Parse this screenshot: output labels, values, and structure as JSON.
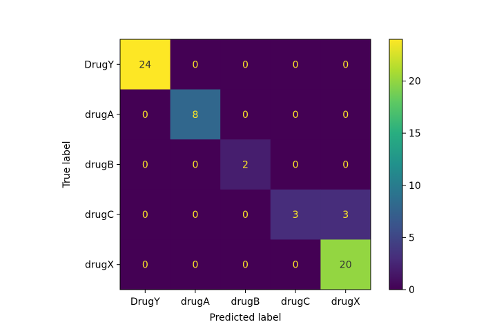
{
  "chart_data": {
    "type": "heatmap",
    "title": "",
    "xlabel": "Predicted label",
    "ylabel": "True label",
    "x_categories": [
      "DrugY",
      "drugA",
      "drugB",
      "drugC",
      "drugX"
    ],
    "y_categories": [
      "DrugY",
      "drugA",
      "drugB",
      "drugC",
      "drugX"
    ],
    "values": [
      [
        24,
        0,
        0,
        0,
        0
      ],
      [
        0,
        8,
        0,
        0,
        0
      ],
      [
        0,
        0,
        2,
        0,
        0
      ],
      [
        0,
        0,
        0,
        3,
        3
      ],
      [
        0,
        0,
        0,
        0,
        20
      ]
    ],
    "colormap": "viridis",
    "colorbar": {
      "min": 0,
      "max": 24,
      "ticks": [
        0,
        5,
        10,
        15,
        20
      ]
    },
    "text_color_low": "#fde725",
    "text_color_high": "#333333"
  }
}
